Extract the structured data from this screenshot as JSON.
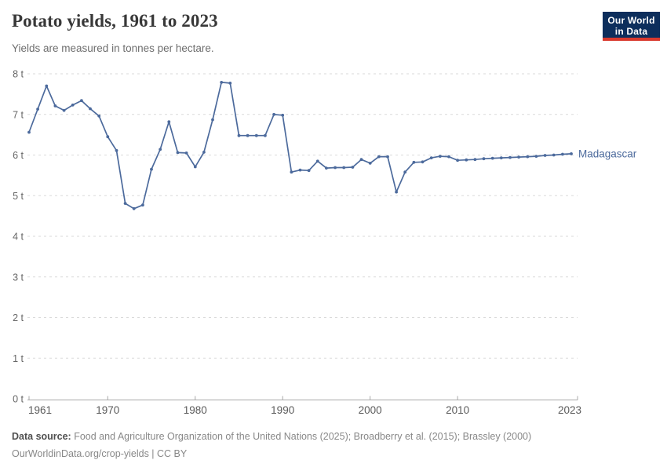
{
  "header": {
    "title": "Potato yields, 1961 to 2023",
    "subtitle": "Yields are measured in tonnes per hectare.",
    "logo": {
      "line1": "Our World",
      "line2": "in Data",
      "bg_color": "#0d2e5c",
      "bar_color": "#d9392e"
    }
  },
  "chart_data": {
    "type": "line",
    "title": "Potato yields, 1961 to 2023",
    "subtitle": "Yields are measured in tonnes per hectare.",
    "unit": "tonnes per hectare",
    "xlim": [
      1961,
      2023
    ],
    "ylim": [
      0,
      8
    ],
    "grid": "horizontal-dashed",
    "legend_position": "end-of-line-label",
    "x_ticks": [
      {
        "value": 1961,
        "label": "1961"
      },
      {
        "value": 1970,
        "label": "1970"
      },
      {
        "value": 1980,
        "label": "1980"
      },
      {
        "value": 1990,
        "label": "1990"
      },
      {
        "value": 2000,
        "label": "2000"
      },
      {
        "value": 2010,
        "label": "2010"
      },
      {
        "value": 2023,
        "label": "2023"
      }
    ],
    "y_ticks": [
      {
        "value": 0,
        "label": "0 t"
      },
      {
        "value": 1,
        "label": "1 t"
      },
      {
        "value": 2,
        "label": "2 t"
      },
      {
        "value": 3,
        "label": "3 t"
      },
      {
        "value": 4,
        "label": "4 t"
      },
      {
        "value": 5,
        "label": "5 t"
      },
      {
        "value": 6,
        "label": "6 t"
      },
      {
        "value": 7,
        "label": "7 t"
      },
      {
        "value": 8,
        "label": "8 t"
      }
    ],
    "series": [
      {
        "name": "Madagascar",
        "color": "#4c6a9c",
        "x": [
          1961,
          1962,
          1963,
          1964,
          1965,
          1966,
          1967,
          1968,
          1969,
          1970,
          1971,
          1972,
          1973,
          1974,
          1975,
          1976,
          1977,
          1978,
          1979,
          1980,
          1981,
          1982,
          1983,
          1984,
          1985,
          1986,
          1987,
          1988,
          1989,
          1990,
          1991,
          1992,
          1993,
          1994,
          1995,
          1996,
          1997,
          1998,
          1999,
          2000,
          2001,
          2002,
          2003,
          2004,
          2005,
          2006,
          2007,
          2008,
          2009,
          2010,
          2011,
          2012,
          2013,
          2014,
          2015,
          2016,
          2017,
          2018,
          2019,
          2020,
          2021,
          2022,
          2023
        ],
        "values": [
          6.56,
          7.13,
          7.7,
          7.21,
          7.1,
          7.23,
          7.34,
          7.14,
          6.96,
          6.45,
          6.11,
          4.81,
          4.68,
          4.77,
          5.65,
          6.14,
          6.82,
          6.06,
          6.05,
          5.71,
          6.07,
          6.87,
          7.79,
          7.77,
          6.48,
          6.48,
          6.48,
          6.48,
          7.0,
          6.98,
          5.58,
          5.63,
          5.62,
          5.85,
          5.68,
          5.69,
          5.69,
          5.7,
          5.89,
          5.8,
          5.96,
          5.96,
          5.09,
          5.58,
          5.82,
          5.83,
          5.93,
          5.97,
          5.96,
          5.87,
          5.88,
          5.89,
          5.91,
          5.92,
          5.93,
          5.94,
          5.95,
          5.96,
          5.97,
          5.99,
          6.0,
          6.02,
          6.03
        ]
      }
    ],
    "colors": {
      "line": "#4c6a9c",
      "gridline": "#dadada",
      "axis": "#a8a8a8",
      "y_tick_label": "#666666",
      "x_tick_label": "#5b5b5b"
    }
  },
  "footer": {
    "source_label": "Data source:",
    "source_text": "Food and Agriculture Organization of the United Nations (2025); Broadberry et al. (2015); Brassley (2000)",
    "license_text": "OurWorldinData.org/crop-yields | CC BY"
  }
}
